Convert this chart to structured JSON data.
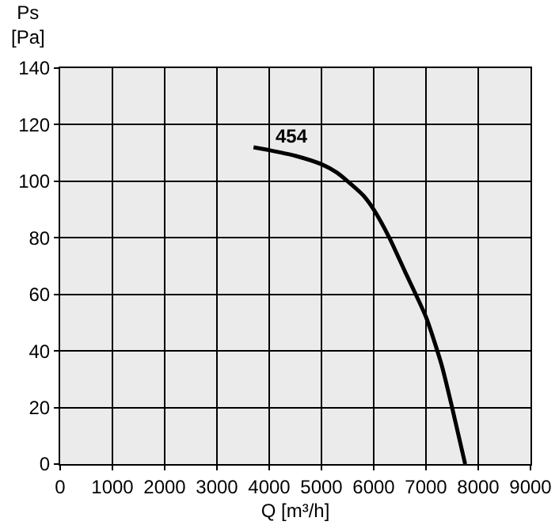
{
  "chart_data": {
    "type": "line",
    "xlabel": "Q [m³/h]",
    "ylabel": "Ps\n[Pa]",
    "x": [
      3700,
      4000,
      4500,
      5000,
      5300,
      5500,
      5800,
      6000,
      6300,
      6600,
      7000,
      7300,
      7500,
      7750
    ],
    "series": [
      {
        "name": "454",
        "color": "#000000",
        "values": [
          112,
          111,
          109,
          106,
          103,
          100,
          95,
          90,
          80,
          68,
          52,
          35,
          20,
          0
        ]
      }
    ],
    "xlim": [
      0,
      9000
    ],
    "xticks": [
      0,
      1000,
      2000,
      3000,
      4000,
      5000,
      6000,
      7000,
      8000,
      9000
    ],
    "ylim": [
      0,
      140
    ],
    "yticks": [
      0,
      20,
      40,
      60,
      80,
      100,
      120,
      140
    ],
    "grid": true,
    "legend": false,
    "marker": "none",
    "line_style": "solid"
  }
}
